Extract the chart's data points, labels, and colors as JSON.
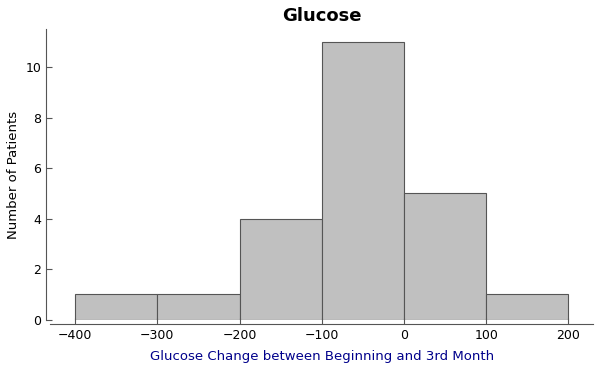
{
  "title": "Glucose",
  "xlabel": "Glucose Change between Beginning and 3rd Month",
  "ylabel": "Number of Patients",
  "bar_edges": [
    -400,
    -300,
    -200,
    -100,
    0,
    100,
    200
  ],
  "bar_heights": [
    1,
    1,
    4,
    11,
    5,
    1
  ],
  "bar_color": "#C0C0C0",
  "bar_edge_color": "#555555",
  "xlim": [
    -430,
    230
  ],
  "ylim": [
    0,
    11.5
  ],
  "xticks": [
    -400,
    -300,
    -200,
    -100,
    0,
    100,
    200
  ],
  "yticks": [
    0,
    2,
    4,
    6,
    8,
    10
  ],
  "title_fontsize": 13,
  "label_fontsize": 9.5,
  "tick_fontsize": 9,
  "xlabel_color": "#00008B",
  "ylabel_color": "#000000",
  "background_color": "#ffffff",
  "fig_width": 6.0,
  "fig_height": 3.7
}
